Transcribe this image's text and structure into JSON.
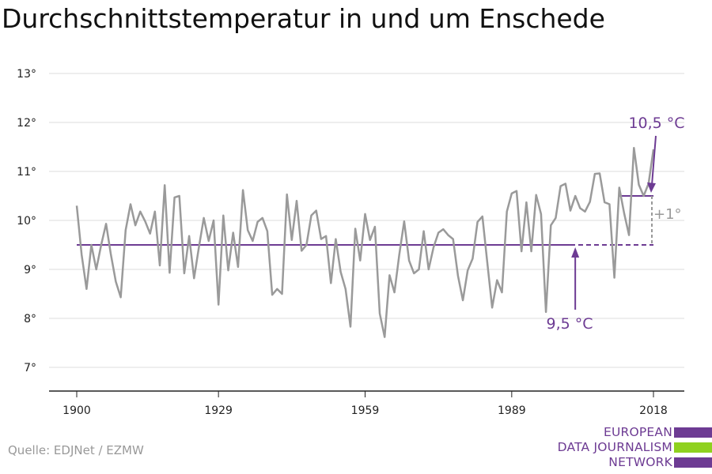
{
  "title": "Durchschnittstemperatur in und um Enschede",
  "source": "Quelle: EDJNet / EZMW",
  "logo": {
    "lines": [
      "EUROPEAN",
      "DATA JOURNALISM",
      "NETWORK"
    ],
    "colors": [
      "#6d3b93",
      "#8fd11f",
      "#6d3b93"
    ]
  },
  "chart_data": {
    "type": "line",
    "ylim": [
      6.5,
      13.5
    ],
    "xlim": [
      1900,
      2018
    ],
    "yticks": [
      7,
      8,
      9,
      10,
      11,
      12,
      13
    ],
    "ytick_labels": [
      "7°",
      "8°",
      "9°",
      "10°",
      "11°",
      "12°",
      "13°"
    ],
    "xticks": [
      1900,
      1929,
      1959,
      1989,
      2018
    ],
    "xtick_labels": [
      "1900",
      "1929",
      "1959",
      "1989",
      "2018"
    ],
    "grid": true,
    "series": [
      {
        "color": "#9a9a9a",
        "x": [
          1900,
          1901,
          1902,
          1903,
          1904,
          1905,
          1906,
          1907,
          1908,
          1909,
          1910,
          1911,
          1912,
          1913,
          1914,
          1915,
          1916,
          1917,
          1918,
          1919,
          1920,
          1921,
          1922,
          1923,
          1924,
          1925,
          1926,
          1927,
          1928,
          1929,
          1930,
          1931,
          1932,
          1933,
          1934,
          1935,
          1936,
          1937,
          1938,
          1939,
          1940,
          1941,
          1942,
          1943,
          1944,
          1945,
          1946,
          1947,
          1948,
          1949,
          1950,
          1951,
          1952,
          1953,
          1954,
          1955,
          1956,
          1957,
          1958,
          1959,
          1960,
          1961,
          1962,
          1963,
          1964,
          1965,
          1966,
          1967,
          1968,
          1969,
          1970,
          1971,
          1972,
          1973,
          1974,
          1975,
          1976,
          1977,
          1978,
          1979,
          1980,
          1981,
          1982,
          1983,
          1984,
          1985,
          1986,
          1987,
          1988,
          1989,
          1990,
          1991,
          1992,
          1993,
          1994,
          1995,
          1996,
          1997,
          1998,
          1999,
          2000,
          2001,
          2002,
          2003,
          2004,
          2005,
          2006,
          2007,
          2008,
          2009,
          2010,
          2011,
          2012,
          2013,
          2014,
          2015,
          2016,
          2017,
          2018
        ],
        "values": [
          10.3,
          9.3,
          8.6,
          9.5,
          9.0,
          9.5,
          9.93,
          9.3,
          8.75,
          8.43,
          9.8,
          10.33,
          9.9,
          10.18,
          9.98,
          9.73,
          10.18,
          9.08,
          10.72,
          8.93,
          10.47,
          10.5,
          8.92,
          9.68,
          8.82,
          9.45,
          10.05,
          9.58,
          10.0,
          8.28,
          10.1,
          8.98,
          9.75,
          9.05,
          10.62,
          9.8,
          9.58,
          9.97,
          10.05,
          9.78,
          8.48,
          8.6,
          8.5,
          10.53,
          9.6,
          10.4,
          9.38,
          9.5,
          10.1,
          10.2,
          9.62,
          9.68,
          8.72,
          9.62,
          8.95,
          8.6,
          7.83,
          9.83,
          9.18,
          10.13,
          9.6,
          9.87,
          8.1,
          7.62,
          8.88,
          8.53,
          9.3,
          9.98,
          9.18,
          8.92,
          9.0,
          9.78,
          9.0,
          9.45,
          9.75,
          9.82,
          9.7,
          9.62,
          8.87,
          8.37,
          8.98,
          9.22,
          9.97,
          10.08,
          9.15,
          8.22,
          8.78,
          8.53,
          10.18,
          10.55,
          10.6,
          9.37,
          10.37,
          9.37,
          10.52,
          10.13,
          8.13,
          9.9,
          10.05,
          10.7,
          10.75,
          10.2,
          10.5,
          10.25,
          10.18,
          10.38,
          10.95,
          10.96,
          10.37,
          10.33,
          8.83,
          10.67,
          10.15,
          9.7,
          11.48,
          10.73,
          10.5,
          10.75,
          11.45
        ]
      }
    ],
    "reference_lines": [
      {
        "label": "9,5 °C",
        "y": 9.5,
        "x_start": 1900,
        "x_end": 2018,
        "color": "#6d3b93"
      },
      {
        "label": "10,5 °C",
        "y": 10.5,
        "x_start": 2011,
        "x_end": 2018,
        "color": "#6d3b93"
      }
    ],
    "difference_label": "+1°",
    "difference_color": "#999999"
  }
}
